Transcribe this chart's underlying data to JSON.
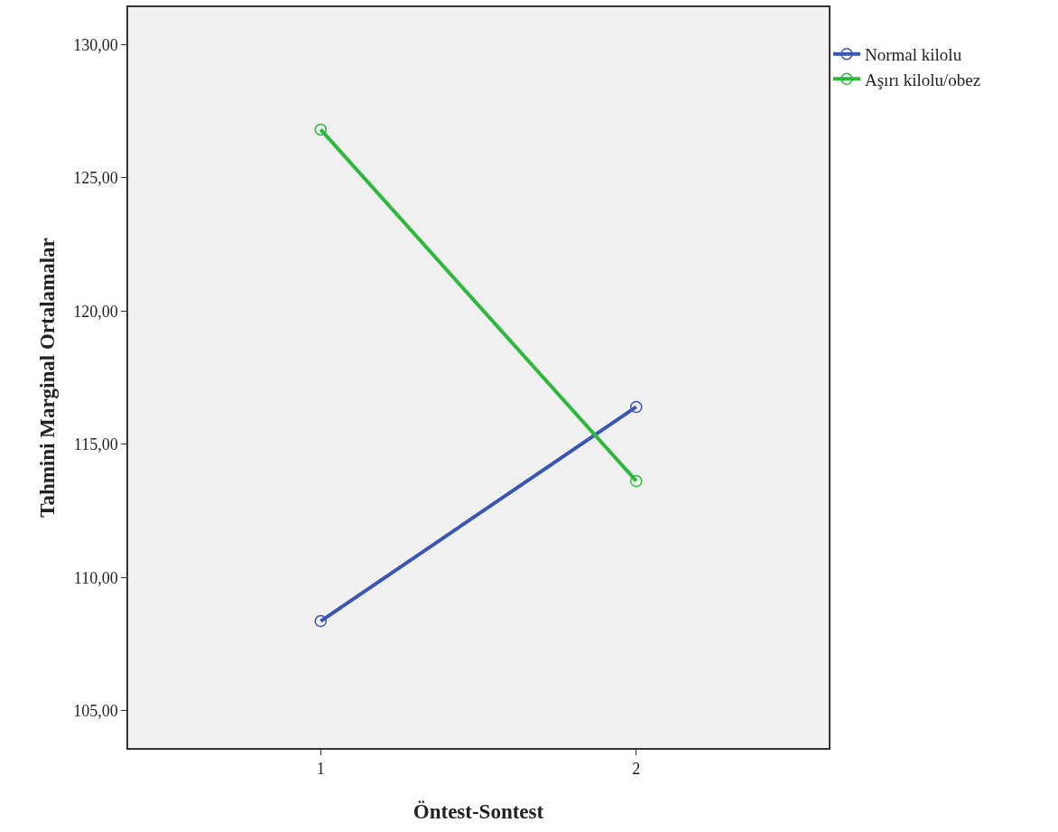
{
  "chart_data": {
    "type": "line",
    "xlabel": "Öntest-Sontest",
    "ylabel": "Tahmini Marginal Ortalamalar",
    "categories": [
      "1",
      "2"
    ],
    "series": [
      {
        "name": "Normal kilolu",
        "color": "#3a55b4",
        "values": [
          108.36,
          116.4
        ]
      },
      {
        "name": "Aşırı kilolu/obez",
        "color": "#2db83d",
        "values": [
          126.81,
          113.62
        ]
      }
    ],
    "ylim": [
      103.6,
      131.4
    ],
    "yticks": [
      {
        "value": 105,
        "label": "105,00"
      },
      {
        "value": 110,
        "label": "110,00"
      },
      {
        "value": 115,
        "label": "115,00"
      },
      {
        "value": 120,
        "label": "120,00"
      },
      {
        "value": 125,
        "label": "125,00"
      },
      {
        "value": 130,
        "label": "130,00"
      }
    ],
    "grid": false,
    "legend": "top right",
    "marker": "circle",
    "line_style": "solid"
  }
}
